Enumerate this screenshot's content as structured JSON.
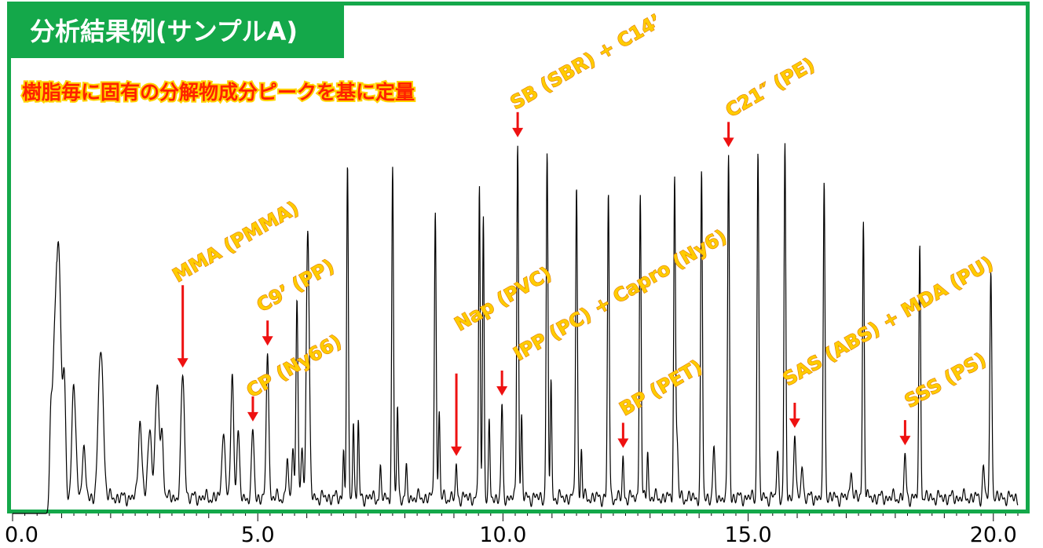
{
  "header": {
    "title": "分析結果例(サンプルA)",
    "subtitle": "樹脂毎に固有の分解物成分ピークを基に定量"
  },
  "colors": {
    "frame": "#14a84a",
    "arrow": "#ee1111",
    "label_fill": "#ffcc00",
    "label_stroke": "#e07a00",
    "subtitle_fill": "#ff2200"
  },
  "chart_data": {
    "type": "line",
    "xlim": [
      0.0,
      20.5
    ],
    "ylim": [
      0,
      100
    ],
    "x_ticks": [
      "0.0",
      "5.0",
      "10.0",
      "15.0",
      "20.0"
    ],
    "x_tick_values": [
      0,
      5,
      10,
      15,
      20
    ],
    "grid": false,
    "baseline": 4,
    "peaks": [
      [
        0.78,
        23,
        0.025
      ],
      [
        0.84,
        28,
        0.03
      ],
      [
        0.9,
        45,
        0.035
      ],
      [
        0.96,
        47,
        0.035
      ],
      [
        1.05,
        31,
        0.03
      ],
      [
        1.25,
        28,
        0.04
      ],
      [
        1.45,
        12,
        0.035
      ],
      [
        1.8,
        38,
        0.05
      ],
      [
        2.6,
        20,
        0.035
      ],
      [
        2.8,
        17,
        0.04
      ],
      [
        2.95,
        28,
        0.04
      ],
      [
        3.05,
        15,
        0.03
      ],
      [
        3.47,
        31,
        0.035
      ],
      [
        4.3,
        18,
        0.03
      ],
      [
        4.48,
        30,
        0.03
      ],
      [
        4.6,
        17,
        0.025
      ],
      [
        4.9,
        17,
        0.025
      ],
      [
        5.2,
        38,
        0.025
      ],
      [
        5.6,
        10,
        0.02
      ],
      [
        5.72,
        14,
        0.02
      ],
      [
        5.8,
        50,
        0.02
      ],
      [
        5.9,
        12,
        0.02
      ],
      [
        6.02,
        68,
        0.03
      ],
      [
        6.75,
        12,
        0.015
      ],
      [
        6.83,
        82,
        0.018
      ],
      [
        6.95,
        20,
        0.015
      ],
      [
        7.05,
        19,
        0.015
      ],
      [
        7.75,
        82,
        0.018
      ],
      [
        7.85,
        24,
        0.015
      ],
      [
        7.5,
        7,
        0.015
      ],
      [
        8.03,
        7,
        0.015
      ],
      [
        8.62,
        74,
        0.018
      ],
      [
        8.7,
        22,
        0.015
      ],
      [
        9.05,
        8,
        0.015
      ],
      [
        9.52,
        80,
        0.016
      ],
      [
        9.6,
        72,
        0.016
      ],
      [
        9.72,
        18,
        0.015
      ],
      [
        9.98,
        23,
        0.018
      ],
      [
        10.3,
        90,
        0.018
      ],
      [
        10.38,
        20,
        0.015
      ],
      [
        10.9,
        86,
        0.018
      ],
      [
        10.98,
        30,
        0.015
      ],
      [
        11.5,
        80,
        0.018
      ],
      [
        11.6,
        12,
        0.015
      ],
      [
        12.15,
        77,
        0.018
      ],
      [
        12.45,
        10,
        0.015
      ],
      [
        12.8,
        77,
        0.018
      ],
      [
        12.95,
        12,
        0.015
      ],
      [
        13.5,
        80,
        0.018
      ],
      [
        13.55,
        14,
        0.02
      ],
      [
        14.05,
        82,
        0.018
      ],
      [
        14.6,
        87,
        0.018
      ],
      [
        14.3,
        12,
        0.02
      ],
      [
        15.2,
        88,
        0.018
      ],
      [
        15.6,
        11,
        0.02
      ],
      [
        15.75,
        88,
        0.018
      ],
      [
        15.95,
        17,
        0.02
      ],
      [
        16.1,
        9,
        0.02
      ],
      [
        16.55,
        80,
        0.018
      ],
      [
        17.1,
        8,
        0.02
      ],
      [
        17.35,
        70,
        0.018
      ],
      [
        18.2,
        10,
        0.02
      ],
      [
        18.5,
        63,
        0.018
      ],
      [
        19.95,
        57,
        0.02
      ],
      [
        19.8,
        8,
        0.02
      ]
    ],
    "annotations": [
      {
        "text": "SB (SBR) + C14’",
        "x": 10.3,
        "arrow_long": false
      },
      {
        "text": "C21″ (PE)",
        "x": 14.6,
        "arrow_long": false
      },
      {
        "text": "MMA (PMMA)",
        "x": 3.47,
        "arrow_long": true
      },
      {
        "text": "C9’ (PP)",
        "x": 5.2,
        "arrow_long": false
      },
      {
        "text": "CP (Ny66)",
        "x": 4.9,
        "arrow_long": false
      },
      {
        "text": "Nap (PVC)",
        "x": 9.05,
        "arrow_long": true
      },
      {
        "text": "IPP (PC) + Capro (Ny6)",
        "x": 9.98,
        "arrow_long": false
      },
      {
        "text": "BP (PET)",
        "x": 12.45,
        "arrow_long": false
      },
      {
        "text": "SAS (ABS) + MDA (PU)",
        "x": 15.95,
        "arrow_long": false
      },
      {
        "text": "SSS (PS)",
        "x": 18.2,
        "arrow_long": false
      }
    ]
  }
}
